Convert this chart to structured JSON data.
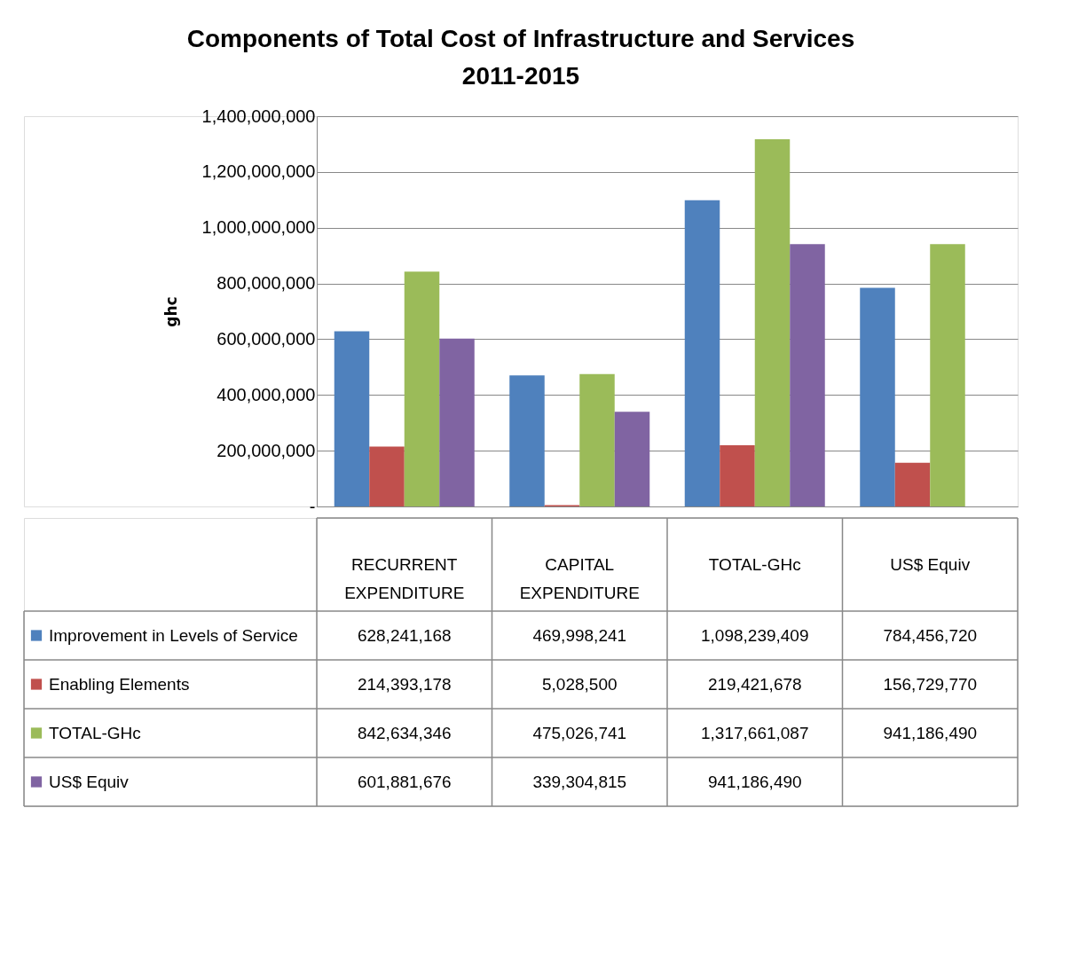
{
  "chart_data": {
    "type": "bar",
    "title": "Components of Total Cost of Infrastructure and Services\n2011-2015",
    "ylabel": "ghc",
    "categories": [
      "RECURRENT EXPENDITURE",
      "CAPITAL EXPENDITURE",
      "TOTAL-GHc",
      "US$ Equiv"
    ],
    "series": [
      {
        "name": "Improvement in Levels  of Service",
        "color": "#4f81bd",
        "values": [
          628241168,
          469998241,
          1098239409,
          784456720
        ],
        "value_labels": [
          "628,241,168",
          "469,998,241",
          "1,098,239,409",
          "784,456,720"
        ]
      },
      {
        "name": "Enabling Elements",
        "color": "#c0504d",
        "values": [
          214393178,
          5028500,
          219421678,
          156729770
        ],
        "value_labels": [
          "214,393,178",
          "5,028,500",
          "219,421,678",
          "156,729,770"
        ]
      },
      {
        "name": "TOTAL-GHc",
        "color": "#9bbb59",
        "values": [
          842634346,
          475026741,
          1317661087,
          941186490
        ],
        "value_labels": [
          "842,634,346",
          "475,026,741",
          "1,317,661,087",
          "941,186,490"
        ]
      },
      {
        "name": "US$ Equiv",
        "color": "#8064a2",
        "values": [
          601881676,
          339304815,
          941186490,
          null
        ],
        "value_labels": [
          "601,881,676",
          "339,304,815",
          "941,186,490",
          null
        ]
      }
    ],
    "ylim": [
      0,
      1400000000
    ],
    "yticks": [
      {
        "value": 0,
        "label": "-"
      },
      {
        "value": 200000000,
        "label": "200,000,000"
      },
      {
        "value": 400000000,
        "label": "400,000,000"
      },
      {
        "value": 600000000,
        "label": "600,000,000"
      },
      {
        "value": 800000000,
        "label": "800,000,000"
      },
      {
        "value": 1000000000,
        "label": "1,000,000,000"
      },
      {
        "value": 1200000000,
        "label": "1,200,000,000"
      },
      {
        "value": 1400000000,
        "label": "1,400,000,000"
      }
    ],
    "grid": "y",
    "legend": "bottom"
  }
}
